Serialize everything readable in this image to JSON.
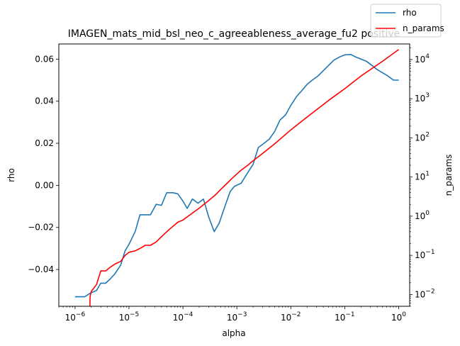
{
  "chart_data": {
    "type": "line",
    "title": "IMAGEN_mats_mid_bsl_neo_c_agreeableness_average_fu2 positive",
    "xlabel": "alpha",
    "ylabel": "rho",
    "y2label": "n_params",
    "xscale": "log",
    "y2scale": "log",
    "xlim": [
      5e-07,
      1.6
    ],
    "ylim": [
      -0.0575,
      0.0672
    ],
    "y2lim": [
      0.005,
      25000
    ],
    "grid": false,
    "legend_position": "top-right",
    "xticks": [
      {
        "value": 1e-06,
        "base": "10",
        "exp": "−6"
      },
      {
        "value": 1e-05,
        "base": "10",
        "exp": "−5"
      },
      {
        "value": 0.0001,
        "base": "10",
        "exp": "−4"
      },
      {
        "value": 0.001,
        "base": "10",
        "exp": "−3"
      },
      {
        "value": 0.01,
        "base": "10",
        "exp": "−2"
      },
      {
        "value": 0.1,
        "base": "10",
        "exp": "−1"
      },
      {
        "value": 1,
        "base": "10",
        "exp": "0"
      }
    ],
    "yticks": [
      {
        "value": -0.04,
        "label": "−0.04"
      },
      {
        "value": -0.02,
        "label": "−0.02"
      },
      {
        "value": 0.0,
        "label": "0.00"
      },
      {
        "value": 0.02,
        "label": "0.02"
      },
      {
        "value": 0.04,
        "label": "0.04"
      },
      {
        "value": 0.06,
        "label": "0.06"
      }
    ],
    "y2ticks": [
      {
        "value": 0.01,
        "base": "10",
        "exp": "−2"
      },
      {
        "value": 0.1,
        "base": "10",
        "exp": "−1"
      },
      {
        "value": 1,
        "base": "10",
        "exp": "0"
      },
      {
        "value": 10,
        "base": "10",
        "exp": "1"
      },
      {
        "value": 100,
        "base": "10",
        "exp": "2"
      },
      {
        "value": 1000,
        "base": "10",
        "exp": "3"
      },
      {
        "value": 10000,
        "base": "10",
        "exp": "4"
      }
    ],
    "series": [
      {
        "name": "rho",
        "axis": "left",
        "color": "#1f77b4",
        "points": [
          [
            1e-06,
            -0.053
          ],
          [
            1.5e-06,
            -0.053
          ],
          [
            2e-06,
            -0.051
          ],
          [
            2.5e-06,
            -0.05
          ],
          [
            3e-06,
            -0.0465
          ],
          [
            3.7e-06,
            -0.0465
          ],
          [
            4.5e-06,
            -0.0445
          ],
          [
            5.5e-06,
            -0.042
          ],
          [
            7e-06,
            -0.038
          ],
          [
            8.5e-06,
            -0.031
          ],
          [
            1e-05,
            -0.028
          ],
          [
            1.3e-05,
            -0.022
          ],
          [
            1.6e-05,
            -0.014
          ],
          [
            2e-05,
            -0.014
          ],
          [
            2.5e-05,
            -0.014
          ],
          [
            3.2e-05,
            -0.009
          ],
          [
            4e-05,
            -0.0095
          ],
          [
            5e-05,
            -0.0035
          ],
          [
            6.5e-05,
            -0.0035
          ],
          [
            8e-05,
            -0.004
          ],
          [
            0.0001,
            -0.0075
          ],
          [
            0.00012,
            -0.011
          ],
          [
            0.00015,
            -0.0065
          ],
          [
            0.00019,
            -0.0085
          ],
          [
            0.00024,
            -0.0065
          ],
          [
            0.0003,
            -0.015
          ],
          [
            0.00038,
            -0.022
          ],
          [
            0.00047,
            -0.018
          ],
          [
            0.0006,
            -0.01
          ],
          [
            0.00075,
            -0.003
          ],
          [
            0.0009,
            -0.0005
          ],
          [
            0.0012,
            0.001
          ],
          [
            0.0015,
            0.005
          ],
          [
            0.002,
            0.01
          ],
          [
            0.0025,
            0.018
          ],
          [
            0.0032,
            0.02
          ],
          [
            0.004,
            0.022
          ],
          [
            0.005,
            0.0255
          ],
          [
            0.0063,
            0.031
          ],
          [
            0.008,
            0.0335
          ],
          [
            0.01,
            0.038
          ],
          [
            0.013,
            0.0425
          ],
          [
            0.016,
            0.045
          ],
          [
            0.02,
            0.048
          ],
          [
            0.025,
            0.05
          ],
          [
            0.032,
            0.052
          ],
          [
            0.04,
            0.0545
          ],
          [
            0.05,
            0.057
          ],
          [
            0.063,
            0.0595
          ],
          [
            0.08,
            0.061
          ],
          [
            0.1,
            0.062
          ],
          [
            0.13,
            0.0622
          ],
          [
            0.16,
            0.061
          ],
          [
            0.2,
            0.06
          ],
          [
            0.25,
            0.059
          ],
          [
            0.32,
            0.057
          ],
          [
            0.4,
            0.055
          ],
          [
            0.5,
            0.0535
          ],
          [
            0.63,
            0.052
          ],
          [
            0.8,
            0.05
          ],
          [
            1.0,
            0.05
          ]
        ]
      },
      {
        "name": "n_params",
        "axis": "right",
        "color": "#ff0000",
        "points": [
          [
            1.85e-06,
            0.001
          ],
          [
            1.9e-06,
            0.009
          ],
          [
            2e-06,
            0.012
          ],
          [
            2.5e-06,
            0.018
          ],
          [
            3e-06,
            0.04
          ],
          [
            3.7e-06,
            0.04
          ],
          [
            4.5e-06,
            0.05
          ],
          [
            5.5e-06,
            0.06
          ],
          [
            7e-06,
            0.07
          ],
          [
            8.5e-06,
            0.1
          ],
          [
            1e-05,
            0.12
          ],
          [
            1.3e-05,
            0.13
          ],
          [
            1.6e-05,
            0.15
          ],
          [
            2e-05,
            0.18
          ],
          [
            2.5e-05,
            0.18
          ],
          [
            3.2e-05,
            0.22
          ],
          [
            4e-05,
            0.3
          ],
          [
            5e-05,
            0.4
          ],
          [
            6.5e-05,
            0.55
          ],
          [
            8e-05,
            0.7
          ],
          [
            0.0001,
            0.8
          ],
          [
            0.00015,
            1.2
          ],
          [
            0.0002,
            1.6
          ],
          [
            0.0003,
            2.5
          ],
          [
            0.0004,
            3.5
          ],
          [
            0.0005,
            4.8
          ],
          [
            0.00063,
            6.5
          ],
          [
            0.0008,
            9.0
          ],
          [
            0.001,
            12
          ],
          [
            0.0012,
            15
          ],
          [
            0.0016,
            20
          ],
          [
            0.002,
            26
          ],
          [
            0.003,
            40
          ],
          [
            0.005,
            70
          ],
          [
            0.01,
            160
          ],
          [
            0.02,
            340
          ],
          [
            0.05,
            900
          ],
          [
            0.1,
            1800
          ],
          [
            0.2,
            3800
          ],
          [
            0.5,
            9000
          ],
          [
            1.0,
            18000
          ]
        ]
      }
    ]
  }
}
